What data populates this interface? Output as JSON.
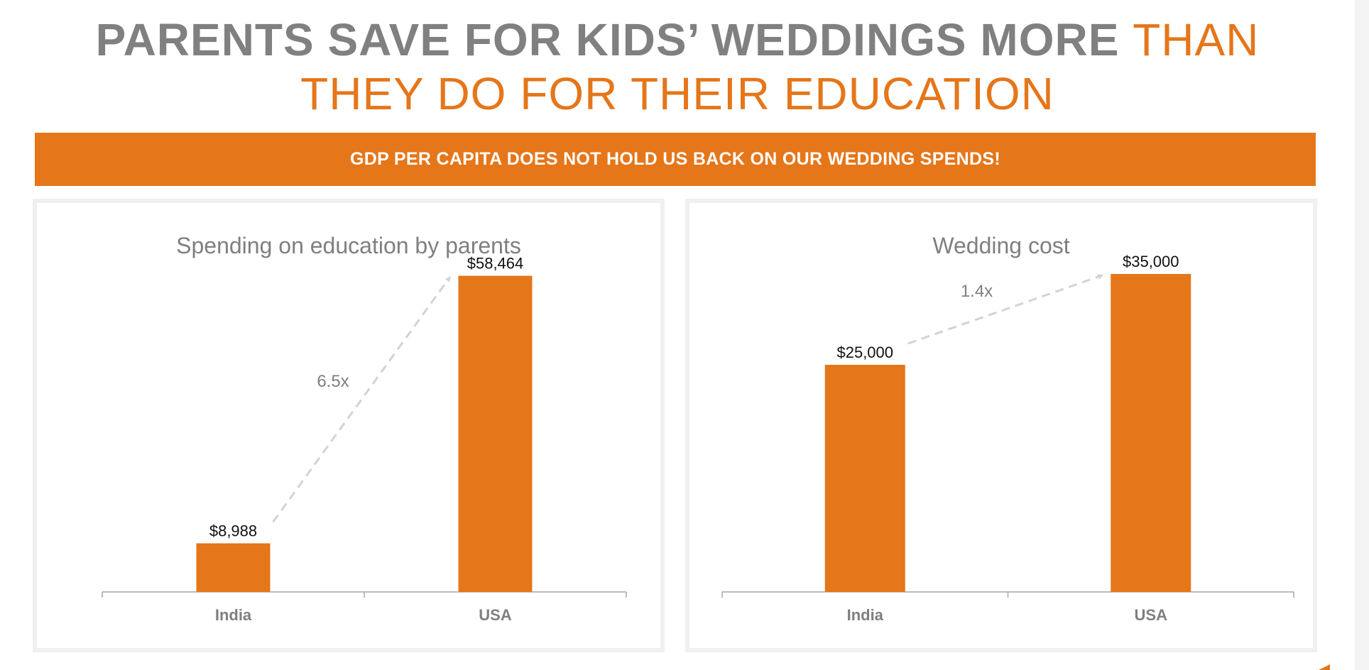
{
  "headline": {
    "part1": "PARENTS SAVE FOR KIDS’ WEDDINGS MORE ",
    "part2": "THAN",
    "part3": "THEY DO FOR THEIR EDUCATION"
  },
  "banner": {
    "text": "GDP PER CAPITA DOES NOT HOLD US BACK ON OUR WEDDING SPENDS!"
  },
  "colors": {
    "accent": "#e5761a",
    "headline_grey": "#808080",
    "arrow": "#d3d3d3",
    "axis": "#a6a6a6"
  },
  "chart_data": [
    {
      "type": "bar",
      "title": "Spending on education by parents",
      "categories": [
        "India",
        "USA"
      ],
      "values": [
        8988,
        58464
      ],
      "value_labels": [
        "$8,988",
        "$58,464"
      ],
      "ylim": [
        0,
        63000
      ],
      "grid": false,
      "annotation": {
        "label": "6.5x",
        "from": "India",
        "to": "USA",
        "style": "dashed-arrow"
      }
    },
    {
      "type": "bar",
      "title": "Wedding cost",
      "categories": [
        "India",
        "USA"
      ],
      "values": [
        25000,
        35000
      ],
      "value_labels": [
        "$25,000",
        "$35,000"
      ],
      "ylim": [
        0,
        37500
      ],
      "grid": false,
      "annotation": {
        "label": "1.4x",
        "from": "India",
        "to": "USA",
        "style": "dashed-arrow"
      }
    }
  ]
}
